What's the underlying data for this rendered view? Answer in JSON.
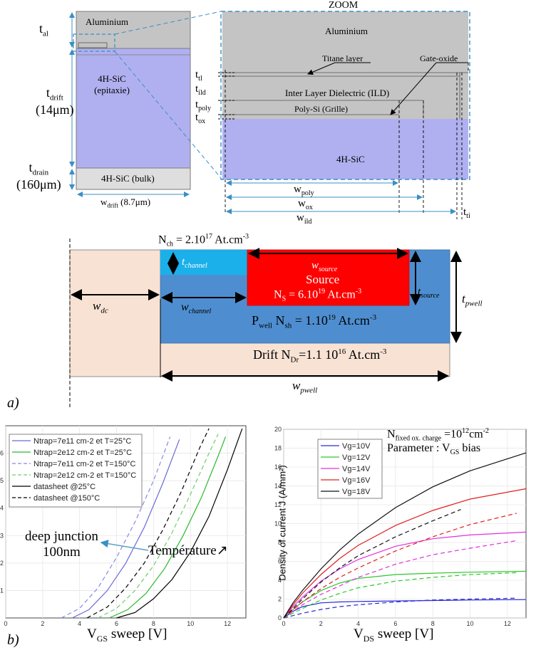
{
  "stack": {
    "aluminium": "Aluminium",
    "epi_line1": "4H-SiC",
    "epi_line2": "(epitaxie)",
    "bulk": "4H-SiC (bulk)",
    "t_al": "t",
    "t_al_sub": "al",
    "t_drift": "t",
    "t_drift_sub": "drift",
    "t_drift_val": "(14μm)",
    "t_drain": "t",
    "t_drain_sub": "drain",
    "t_drain_val": "(160μm)",
    "w_drift": "w",
    "w_drift_sub": "drift",
    "w_drift_val": "(8.7μm)"
  },
  "zoom": {
    "title": "ZOOM",
    "aluminium": "Aluminium",
    "titane": "Titane layer",
    "gate_oxide": "Gate-oxide",
    "ild": "Inter Layer Dielectric (ILD)",
    "poly": "Poly-Si (Grille)",
    "sic": "4H-SiC",
    "t_tl": "t",
    "t_tl_sub": "tl",
    "t_ild": "t",
    "t_ild_sub": "ild",
    "t_poly": "t",
    "t_poly_sub": "poly",
    "t_ox": "t",
    "t_ox_sub": "ox",
    "w_poly": "w",
    "w_poly_sub": "poly",
    "w_ox": "w",
    "w_ox_sub": "ox",
    "w_ild": "w",
    "w_ild_sub": "ild",
    "t_ti": "t",
    "t_ti_sub": "ti"
  },
  "cell": {
    "nch_pre": "N",
    "nch_sub": "ch",
    "nch_val": " = 2.10",
    "nch_exp": "17",
    "nch_unit": " At.cm",
    "nch_unit_exp": "-3",
    "t_channel": "t",
    "t_channel_sub": "channel",
    "w_source": "w",
    "w_source_sub": "source",
    "source_title": "Source",
    "ns_pre": "N",
    "ns_sub": "S",
    "ns_val": " = 6.10",
    "ns_exp": "19",
    "ns_unit": " At.cm",
    "ns_unit_exp": "-3",
    "t_source": "t",
    "t_source_sub": "source",
    "t_pwell": "t",
    "t_pwell_sub": "pwell",
    "w_dc": "w",
    "w_dc_sub": "dc",
    "w_channel": "w",
    "w_channel_sub": "channel",
    "pwell_pre": "P",
    "pwell_sub": "well",
    "nsh_pre": " N",
    "nsh_sub": "sh",
    "nsh_val": " = 1.10",
    "nsh_exp": "19",
    "nsh_unit": " At.cm",
    "nsh_unit_exp": "-3",
    "drift_pre": "Drift N",
    "drift_sub": "Dr",
    "drift_val": "=1.1 10",
    "drift_exp": "16",
    "drift_unit": " At.cm",
    "drift_unit_exp": "-3",
    "w_pwell": "w",
    "w_pwell_sub": "pwell",
    "panel_a": "a)"
  },
  "panel_b_label": "b)",
  "chart_data": [
    {
      "type": "line",
      "xlabel_pre": "V",
      "xlabel_sub": "GS",
      "xlabel_post": " sweep [V]",
      "xlim": [
        0,
        13
      ],
      "ylim": [
        0,
        7
      ],
      "xticks": [
        "0",
        "2",
        "4",
        "6",
        "8",
        "10",
        "12"
      ],
      "yticks": [
        "1",
        "2",
        "3",
        "4",
        "5",
        "6"
      ],
      "legend": [
        "Ntrap=7e11 cm-2 et T=25°C",
        "Ntrap=2e12 cm-2 et T=25°C",
        "Ntrap=7e11 cm-2 et T=150°C",
        "Ntrap=2e12 cm-2 et T=150°C",
        "datasheet @25°C",
        "datasheet @150°C"
      ],
      "annotation_line1": "deep junction",
      "annotation_line2": "100nm",
      "annotation_temp": "Température↗",
      "series": [
        {
          "name": "Ntrap=7e11 cm-2 et T=25°C",
          "color": "#6a6ad8",
          "dash": false,
          "points": [
            [
              3.6,
              0
            ],
            [
              4.5,
              0.3
            ],
            [
              5.5,
              1.0
            ],
            [
              6.5,
              2.0
            ],
            [
              7.5,
              3.3
            ],
            [
              8.5,
              4.9
            ],
            [
              9.4,
              6.5
            ]
          ]
        },
        {
          "name": "Ntrap=2e12 cm-2 et T=25°C",
          "color": "#2db82d",
          "dash": false,
          "points": [
            [
              5.6,
              0
            ],
            [
              6.6,
              0.3
            ],
            [
              7.6,
              0.9
            ],
            [
              8.6,
              1.8
            ],
            [
              9.6,
              3.0
            ],
            [
              10.6,
              4.4
            ],
            [
              11.5,
              5.9
            ],
            [
              11.9,
              6.6
            ]
          ]
        },
        {
          "name": "Ntrap=7e11 cm-2 et T=150°C",
          "color": "#8888e0",
          "dash": true,
          "points": [
            [
              3.0,
              0
            ],
            [
              4.0,
              0.35
            ],
            [
              5.0,
              1.1
            ],
            [
              6.0,
              2.2
            ],
            [
              7.0,
              3.5
            ],
            [
              8.0,
              5.0
            ],
            [
              8.9,
              6.6
            ]
          ]
        },
        {
          "name": "Ntrap=2e12 cm-2 et T=150°C",
          "color": "#70cc70",
          "dash": true,
          "points": [
            [
              5.0,
              0
            ],
            [
              6.0,
              0.35
            ],
            [
              7.0,
              1.0
            ],
            [
              8.0,
              1.9
            ],
            [
              9.0,
              3.1
            ],
            [
              10.0,
              4.5
            ],
            [
              11.0,
              6.0
            ],
            [
              11.5,
              6.7
            ]
          ]
        },
        {
          "name": "datasheet @25°C",
          "color": "#000000",
          "dash": false,
          "points": [
            [
              6.0,
              0
            ],
            [
              7.0,
              0.2
            ],
            [
              8.0,
              0.7
            ],
            [
              9.0,
              1.4
            ],
            [
              10.0,
              2.4
            ],
            [
              11.0,
              3.7
            ],
            [
              12.0,
              5.4
            ],
            [
              12.8,
              6.9
            ]
          ]
        },
        {
          "name": "datasheet @150°C",
          "color": "#000000",
          "dash": true,
          "points": [
            [
              4.4,
              0
            ],
            [
              5.5,
              0.4
            ],
            [
              6.5,
              1.1
            ],
            [
              7.5,
              2.0
            ],
            [
              8.5,
              3.2
            ],
            [
              9.5,
              4.6
            ],
            [
              10.5,
              6.2
            ],
            [
              11.0,
              6.9
            ]
          ]
        }
      ]
    },
    {
      "type": "line",
      "title_pre": "N",
      "title_sub": "fixed ox. charge",
      "title_val": " =10",
      "title_exp": "12",
      "title_unit": "cm",
      "title_unit_exp": "-2",
      "subtitle_pre": "Parameter : V",
      "subtitle_sub": "GS",
      "subtitle_post": " bias",
      "xlabel_pre": "V",
      "xlabel_sub": "DS",
      "xlabel_post": " sweep [V]",
      "ylabel": "Density of current J (A/mm²)",
      "xlim": [
        0,
        13
      ],
      "ylim": [
        0,
        20
      ],
      "xticks": [
        "0",
        "2",
        "4",
        "6",
        "8",
        "10",
        "12"
      ],
      "yticks": [
        "0",
        "2",
        "4",
        "6",
        "8",
        "10",
        "12",
        "14",
        "16",
        "18",
        "20"
      ],
      "legend": [
        "Vg=10V",
        "Vg=12V",
        "Vg=14V",
        "Vg=16V",
        "Vg=18V"
      ],
      "series": [
        {
          "name": "Vg=10V",
          "color": "#2a2ad8",
          "dash": false,
          "points": [
            [
              0,
              0
            ],
            [
              0.5,
              0.7
            ],
            [
              1,
              1.2
            ],
            [
              2,
              1.6
            ],
            [
              3,
              1.7
            ],
            [
              4,
              1.75
            ],
            [
              6,
              1.8
            ],
            [
              8,
              1.85
            ],
            [
              10,
              1.9
            ],
            [
              13,
              1.95
            ]
          ]
        },
        {
          "name": "Vg=10V dashed",
          "color": "#2a2ad8",
          "dash": true,
          "points": [
            [
              0,
              0
            ],
            [
              1,
              0.5
            ],
            [
              2,
              0.9
            ],
            [
              3,
              1.2
            ],
            [
              4,
              1.4
            ],
            [
              6,
              1.7
            ],
            [
              8,
              1.9
            ],
            [
              10,
              2.0
            ],
            [
              12.5,
              2.1
            ]
          ]
        },
        {
          "name": "Vg=12V",
          "color": "#2dc82d",
          "dash": false,
          "points": [
            [
              0,
              0
            ],
            [
              0.5,
              0.9
            ],
            [
              1,
              1.7
            ],
            [
              2,
              2.9
            ],
            [
              3,
              3.7
            ],
            [
              4,
              4.2
            ],
            [
              6,
              4.6
            ],
            [
              8,
              4.75
            ],
            [
              10,
              4.85
            ],
            [
              13,
              4.95
            ]
          ]
        },
        {
          "name": "Vg=12V dashed",
          "color": "#2dc82d",
          "dash": true,
          "points": [
            [
              0,
              0
            ],
            [
              1,
              1.0
            ],
            [
              2,
              1.9
            ],
            [
              3,
              2.6
            ],
            [
              4,
              3.2
            ],
            [
              6,
              3.9
            ],
            [
              8,
              4.3
            ],
            [
              10,
              4.6
            ],
            [
              12.5,
              4.8
            ]
          ]
        },
        {
          "name": "Vg=14V",
          "color": "#e030e0",
          "dash": false,
          "points": [
            [
              0,
              0
            ],
            [
              0.5,
              1.2
            ],
            [
              1,
              2.2
            ],
            [
              2,
              3.9
            ],
            [
              3,
              5.2
            ],
            [
              4,
              6.2
            ],
            [
              6,
              7.6
            ],
            [
              8,
              8.4
            ],
            [
              10,
              8.8
            ],
            [
              13,
              9.1
            ]
          ]
        },
        {
          "name": "Vg=14V dashed",
          "color": "#e030e0",
          "dash": true,
          "points": [
            [
              0,
              0
            ],
            [
              1,
              1.4
            ],
            [
              2,
              2.5
            ],
            [
              3,
              3.4
            ],
            [
              4,
              4.3
            ],
            [
              6,
              5.7
            ],
            [
              8,
              6.7
            ],
            [
              10,
              7.4
            ],
            [
              12.5,
              8.2
            ]
          ]
        },
        {
          "name": "Vg=16V",
          "color": "#e02020",
          "dash": false,
          "points": [
            [
              0,
              0
            ],
            [
              0.5,
              1.4
            ],
            [
              1,
              2.6
            ],
            [
              2,
              4.6
            ],
            [
              3,
              6.3
            ],
            [
              4,
              7.7
            ],
            [
              6,
              9.8
            ],
            [
              8,
              11.4
            ],
            [
              10,
              12.6
            ],
            [
              13,
              13.7
            ]
          ]
        },
        {
          "name": "Vg=16V dashed",
          "color": "#e02020",
          "dash": true,
          "points": [
            [
              0,
              0
            ],
            [
              1,
              1.7
            ],
            [
              2,
              3.1
            ],
            [
              3,
              4.3
            ],
            [
              4,
              5.3
            ],
            [
              6,
              7.1
            ],
            [
              8,
              8.6
            ],
            [
              10,
              9.9
            ],
            [
              12.5,
              11.1
            ]
          ]
        },
        {
          "name": "Vg=18V",
          "color": "#111111",
          "dash": false,
          "points": [
            [
              0,
              0
            ],
            [
              0.5,
              1.6
            ],
            [
              1,
              2.9
            ],
            [
              2,
              5.2
            ],
            [
              3,
              7.2
            ],
            [
              4,
              8.9
            ],
            [
              6,
              11.7
            ],
            [
              8,
              13.9
            ],
            [
              10,
              15.6
            ],
            [
              13,
              17.5
            ]
          ]
        },
        {
          "name": "Vg=18V dashed",
          "color": "#111111",
          "dash": true,
          "points": [
            [
              0,
              0
            ],
            [
              1,
              2.0
            ],
            [
              2,
              3.8
            ],
            [
              3,
              5.3
            ],
            [
              4,
              6.6
            ],
            [
              6,
              8.6
            ],
            [
              8,
              10.3
            ],
            [
              9.5,
              11.5
            ]
          ]
        }
      ]
    }
  ]
}
